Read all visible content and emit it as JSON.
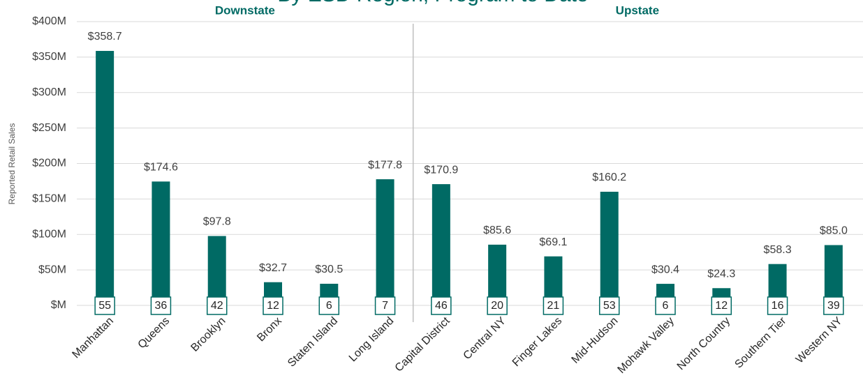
{
  "chart_data": {
    "type": "bar",
    "title": "By ESD Region, Program to Date",
    "y_axis_label": "Reported Retail Sales",
    "groups": [
      {
        "name": "Downstate",
        "size": 6
      },
      {
        "name": "Upstate",
        "size": 8
      }
    ],
    "categories": [
      "Manhattan",
      "Queens",
      "Brooklyn",
      "Bronx",
      "Staten Island",
      "Long Island",
      "Capital District",
      "Central NY",
      "Finger Lakes",
      "Mid-Hudson",
      "Mohawk Valley",
      "North Country",
      "Southern Tier",
      "Western NY"
    ],
    "values": [
      358.7,
      174.6,
      97.8,
      32.7,
      30.5,
      177.8,
      170.9,
      85.6,
      69.1,
      160.2,
      30.4,
      24.3,
      58.3,
      85.0
    ],
    "value_labels": [
      "$358.7",
      "$174.6",
      "$97.8",
      "$32.7",
      "$30.5",
      "$177.8",
      "$170.9",
      "$85.6",
      "$69.1",
      "$160.2",
      "$30.4",
      "$24.3",
      "$58.3",
      "$85.0"
    ],
    "counts": [
      55,
      36,
      42,
      12,
      6,
      7,
      46,
      20,
      21,
      53,
      6,
      12,
      16,
      39
    ],
    "color": "#006a64",
    "ylim": [
      0,
      400
    ],
    "yticks": [
      {
        "value": 0,
        "label": "$M"
      },
      {
        "value": 50,
        "label": "$50M"
      },
      {
        "value": 100,
        "label": "$100M"
      },
      {
        "value": 150,
        "label": "$150M"
      },
      {
        "value": 200,
        "label": "$200M"
      },
      {
        "value": 250,
        "label": "$250M"
      },
      {
        "value": 300,
        "label": "$300M"
      },
      {
        "value": 350,
        "label": "$350M"
      },
      {
        "value": 400,
        "label": "$400M"
      }
    ],
    "grid": true
  }
}
